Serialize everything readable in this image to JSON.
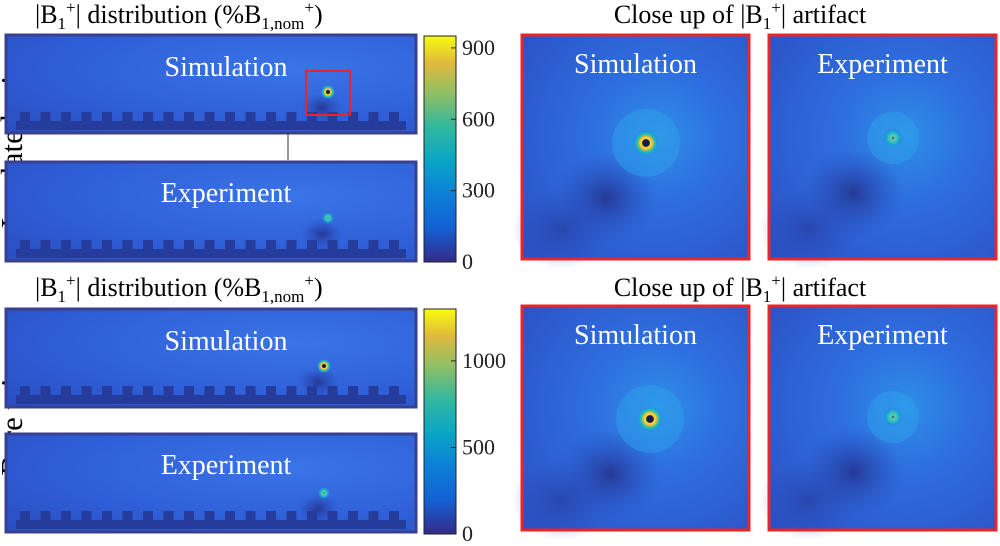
{
  "rows": [
    {
      "side_label": "Insulated wire",
      "map_title": {
        "prefix": "|B",
        "sub1": "1",
        "sup1": "+",
        "mid": "| distribution (%B",
        "sub2": "1,nom",
        "sup2": "+",
        "suffix": ")"
      },
      "closeup_title": {
        "prefix": "Close up of |B",
        "sub1": "1",
        "sup1": "+",
        "suffix": "| artifact"
      },
      "maps": [
        {
          "label": "Simulation",
          "hotspot": "strong",
          "selection_box": true
        },
        {
          "label": "Experiment",
          "hotspot": "weak"
        }
      ],
      "colorbar": {
        "ticks": [
          0,
          300,
          600,
          900
        ],
        "max": 950
      },
      "closeups": [
        {
          "label": "Simulation",
          "hotspot": "strong"
        },
        {
          "label": "Experiment",
          "hotspot": "weak"
        }
      ]
    },
    {
      "side_label": "Bare wire",
      "map_title": {
        "prefix": "|B",
        "sub1": "1",
        "sup1": "+",
        "mid": "| distribution (%B",
        "sub2": "1,nom",
        "sup2": "+",
        "suffix": ")"
      },
      "closeup_title": {
        "prefix": "Close up of |B",
        "sub1": "1",
        "sup1": "+",
        "suffix": "| artifact"
      },
      "maps": [
        {
          "label": "Simulation",
          "hotspot": "strong"
        },
        {
          "label": "Experiment",
          "hotspot": "weak"
        }
      ],
      "colorbar": {
        "ticks": [
          0,
          500,
          1000
        ],
        "max": 1300
      },
      "closeups": [
        {
          "label": "Simulation",
          "hotspot": "strong"
        },
        {
          "label": "Experiment",
          "hotspot": "weak"
        }
      ]
    }
  ],
  "colors": {
    "field_bg": "#2f5fd8",
    "field_dark": "#263c9c",
    "frame_border": "#3a3f8e",
    "closeup_border": "#e8262a",
    "selection_box": "#e8262a",
    "label_text": "#ffffff"
  }
}
